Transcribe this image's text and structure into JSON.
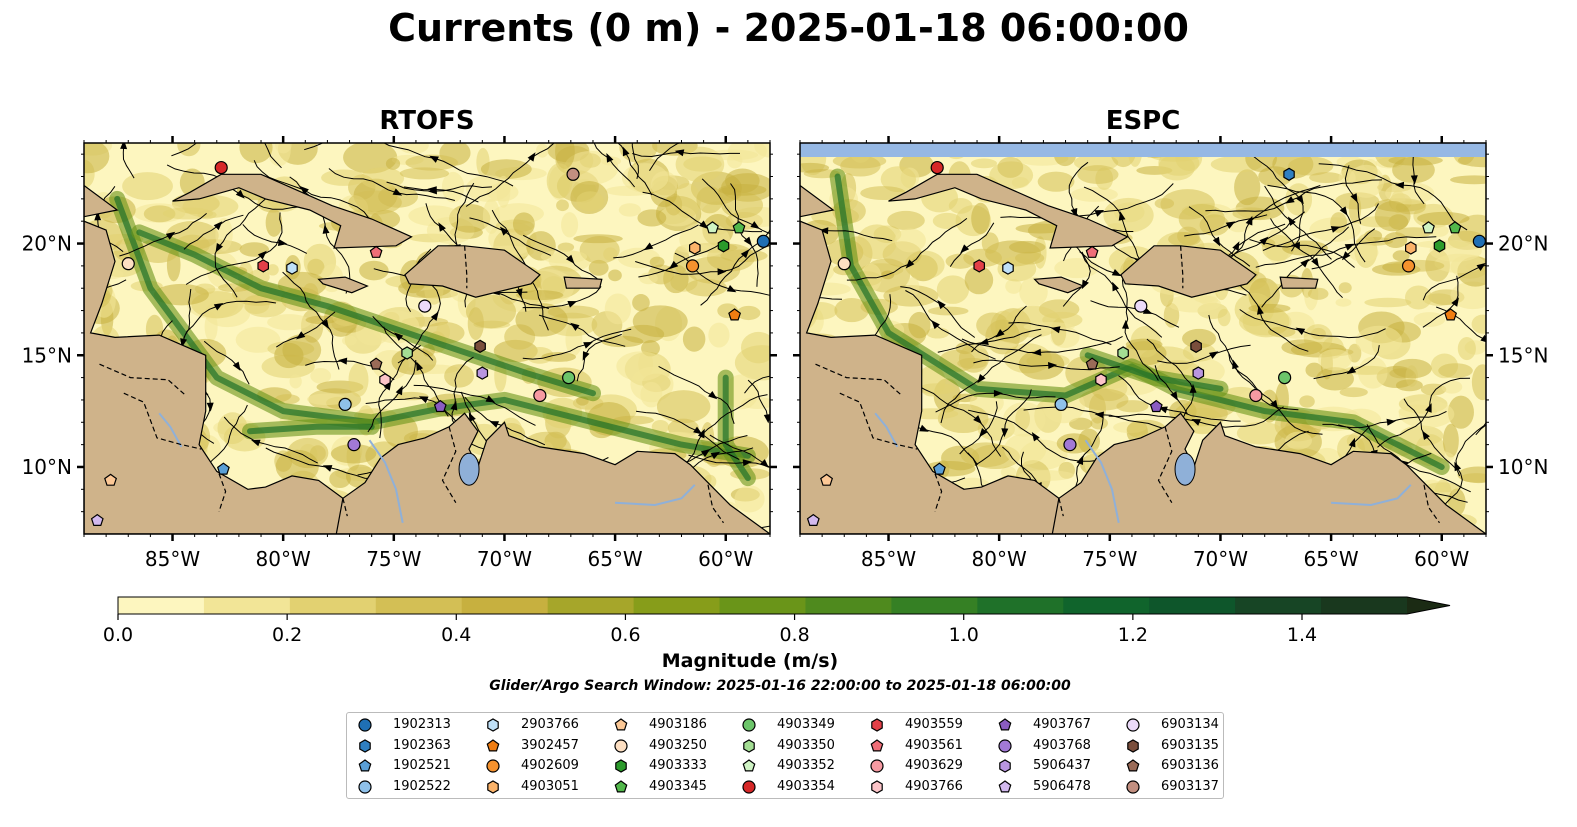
{
  "title": "Currents (0 m) - 2025-01-18 06:00:00",
  "subtitle": "Glider/Argo Search Window: 2025-01-16 22:00:00 to 2025-01-18 06:00:00",
  "colors": {
    "land": "#cfb38a",
    "ocean_low": "#fdf6bf",
    "border": "#000000",
    "rivers": "#8fb0d8",
    "no_data_band": "#96b8e4"
  },
  "chart_data": [
    {
      "type": "heatmap",
      "title": "RTOFS",
      "xlim": [
        -89,
        -58
      ],
      "ylim": [
        7,
        24.5
      ],
      "x_ticks": [
        "85°W",
        "80°W",
        "75°W",
        "70°W",
        "65°W",
        "60°W"
      ],
      "y_ticks": [
        "10°N",
        "15°N",
        "20°N"
      ],
      "markers": [
        {
          "id": "1902313",
          "lon": -58.3,
          "lat": 20.1
        },
        {
          "id": "1902521",
          "lon": -82.7,
          "lat": 9.9
        },
        {
          "id": "1902522",
          "lon": -77.2,
          "lat": 12.8
        },
        {
          "id": "2903766",
          "lon": -79.6,
          "lat": 18.9
        },
        {
          "id": "3902457",
          "lon": -59.6,
          "lat": 16.8
        },
        {
          "id": "4902609",
          "lon": -61.5,
          "lat": 19.0
        },
        {
          "id": "4903051",
          "lon": -61.4,
          "lat": 19.8
        },
        {
          "id": "4903186",
          "lon": -87.8,
          "lat": 9.4
        },
        {
          "id": "4903250",
          "lon": -87.0,
          "lat": 19.1
        },
        {
          "id": "4903333",
          "lon": -60.1,
          "lat": 19.9
        },
        {
          "id": "4903345",
          "lon": -59.4,
          "lat": 20.7
        },
        {
          "id": "4903349",
          "lon": -67.1,
          "lat": 14.0
        },
        {
          "id": "4903350",
          "lon": -74.4,
          "lat": 15.1
        },
        {
          "id": "4903352",
          "lon": -60.6,
          "lat": 20.7
        },
        {
          "id": "4903354",
          "lon": -82.8,
          "lat": 23.4
        },
        {
          "id": "4903559",
          "lon": -80.9,
          "lat": 19.0
        },
        {
          "id": "4903561",
          "lon": -75.8,
          "lat": 19.6
        },
        {
          "id": "4903629",
          "lon": -68.4,
          "lat": 13.2
        },
        {
          "id": "4903766",
          "lon": -75.4,
          "lat": 13.9
        },
        {
          "id": "4903767",
          "lon": -72.9,
          "lat": 12.7
        },
        {
          "id": "4903768",
          "lon": -76.8,
          "lat": 11.0
        },
        {
          "id": "5906437",
          "lon": -71.0,
          "lat": 14.2
        },
        {
          "id": "5906478",
          "lon": -88.4,
          "lat": 7.6
        },
        {
          "id": "6903134",
          "lon": -73.6,
          "lat": 17.2
        },
        {
          "id": "6903135",
          "lon": -71.1,
          "lat": 15.4
        },
        {
          "id": "6903136",
          "lon": -75.8,
          "lat": 14.6
        },
        {
          "id": "6903137",
          "lon": -66.9,
          "lat": 23.1
        }
      ]
    },
    {
      "type": "heatmap",
      "title": "ESPC",
      "xlim": [
        -89,
        -58
      ],
      "ylim": [
        7,
        24.5
      ],
      "x_ticks": [
        "85°W",
        "80°W",
        "75°W",
        "70°W",
        "65°W",
        "60°W"
      ],
      "y_ticks": [
        "10°N",
        "15°N",
        "20°N"
      ],
      "markers": [
        {
          "id": "1902313",
          "lon": -58.3,
          "lat": 20.1
        },
        {
          "id": "1902363",
          "lon": -66.9,
          "lat": 23.1
        },
        {
          "id": "1902521",
          "lon": -82.7,
          "lat": 9.9
        },
        {
          "id": "1902522",
          "lon": -77.2,
          "lat": 12.8
        },
        {
          "id": "2903766",
          "lon": -79.6,
          "lat": 18.9
        },
        {
          "id": "3902457",
          "lon": -59.6,
          "lat": 16.8
        },
        {
          "id": "4902609",
          "lon": -61.5,
          "lat": 19.0
        },
        {
          "id": "4903051",
          "lon": -61.4,
          "lat": 19.8
        },
        {
          "id": "4903186",
          "lon": -87.8,
          "lat": 9.4
        },
        {
          "id": "4903250",
          "lon": -87.0,
          "lat": 19.1
        },
        {
          "id": "4903333",
          "lon": -60.1,
          "lat": 19.9
        },
        {
          "id": "4903345",
          "lon": -59.4,
          "lat": 20.7
        },
        {
          "id": "4903349",
          "lon": -67.1,
          "lat": 14.0
        },
        {
          "id": "4903350",
          "lon": -74.4,
          "lat": 15.1
        },
        {
          "id": "4903352",
          "lon": -60.6,
          "lat": 20.7
        },
        {
          "id": "4903354",
          "lon": -82.8,
          "lat": 23.4
        },
        {
          "id": "4903559",
          "lon": -80.9,
          "lat": 19.0
        },
        {
          "id": "4903561",
          "lon": -75.8,
          "lat": 19.6
        },
        {
          "id": "4903629",
          "lon": -68.4,
          "lat": 13.2
        },
        {
          "id": "4903766",
          "lon": -75.4,
          "lat": 13.9
        },
        {
          "id": "4903767",
          "lon": -72.9,
          "lat": 12.7
        },
        {
          "id": "4903768",
          "lon": -76.8,
          "lat": 11.0
        },
        {
          "id": "5906437",
          "lon": -71.0,
          "lat": 14.2
        },
        {
          "id": "5906478",
          "lon": -88.4,
          "lat": 7.6
        },
        {
          "id": "6903134",
          "lon": -73.6,
          "lat": 17.2
        },
        {
          "id": "6903135",
          "lon": -71.1,
          "lat": 15.4
        },
        {
          "id": "6903136",
          "lon": -75.8,
          "lat": 14.6
        }
      ]
    }
  ],
  "colorbar": {
    "label": "Magnitude (m/s)",
    "range": [
      0,
      1.5
    ],
    "extend": "max",
    "ticks": [
      "0.0",
      "0.2",
      "0.4",
      "0.6",
      "0.8",
      "1.0",
      "1.2",
      "1.4"
    ],
    "colors": [
      "#fdf6bf",
      "#f2e597",
      "#e2d171",
      "#d3bf55",
      "#c7b03f",
      "#a6a62a",
      "#879d1a",
      "#6a9519",
      "#4f8a1e",
      "#358024",
      "#1f7129",
      "#10642c",
      "#0e562b",
      "#174525",
      "#19381e",
      "#1b2b14"
    ]
  },
  "legend": {
    "items": [
      {
        "id": "1902313",
        "shape": "circle",
        "color": "#1f6fb4"
      },
      {
        "id": "1902363",
        "shape": "hexagon",
        "color": "#2f7fc1"
      },
      {
        "id": "1902521",
        "shape": "pentagon",
        "color": "#5a9fd6"
      },
      {
        "id": "1902522",
        "shape": "circle",
        "color": "#8fc1ea"
      },
      {
        "id": "2903766",
        "shape": "hexagon",
        "color": "#bfe0f7"
      },
      {
        "id": "3902457",
        "shape": "pentagon",
        "color": "#f07d12"
      },
      {
        "id": "4902609",
        "shape": "circle",
        "color": "#f5922e"
      },
      {
        "id": "4903051",
        "shape": "hexagon",
        "color": "#fbb36a"
      },
      {
        "id": "4903186",
        "shape": "pentagon",
        "color": "#fcc896"
      },
      {
        "id": "4903250",
        "shape": "circle",
        "color": "#fddfc2"
      },
      {
        "id": "4903333",
        "shape": "hexagon",
        "color": "#2b9a2b"
      },
      {
        "id": "4903345",
        "shape": "pentagon",
        "color": "#52b84b"
      },
      {
        "id": "4903349",
        "shape": "circle",
        "color": "#6cc56a"
      },
      {
        "id": "4903350",
        "shape": "hexagon",
        "color": "#a4de94"
      },
      {
        "id": "4903352",
        "shape": "pentagon",
        "color": "#cff3c4"
      },
      {
        "id": "4903354",
        "shape": "circle",
        "color": "#d62828"
      },
      {
        "id": "4903559",
        "shape": "hexagon",
        "color": "#e34048"
      },
      {
        "id": "4903561",
        "shape": "pentagon",
        "color": "#ef6e78"
      },
      {
        "id": "4903629",
        "shape": "circle",
        "color": "#f69aa2"
      },
      {
        "id": "4903766",
        "shape": "hexagon",
        "color": "#fcc4c8"
      },
      {
        "id": "4903767",
        "shape": "pentagon",
        "color": "#8a5cc2"
      },
      {
        "id": "4903768",
        "shape": "circle",
        "color": "#a279d6"
      },
      {
        "id": "5906437",
        "shape": "hexagon",
        "color": "#b996e0"
      },
      {
        "id": "5906478",
        "shape": "pentagon",
        "color": "#d2b9ee"
      },
      {
        "id": "6903134",
        "shape": "circle",
        "color": "#ebdaf9"
      },
      {
        "id": "6903135",
        "shape": "hexagon",
        "color": "#7a4e3c"
      },
      {
        "id": "6903136",
        "shape": "pentagon",
        "color": "#9a6b58"
      },
      {
        "id": "6903137",
        "shape": "circle",
        "color": "#c28f80"
      }
    ]
  }
}
